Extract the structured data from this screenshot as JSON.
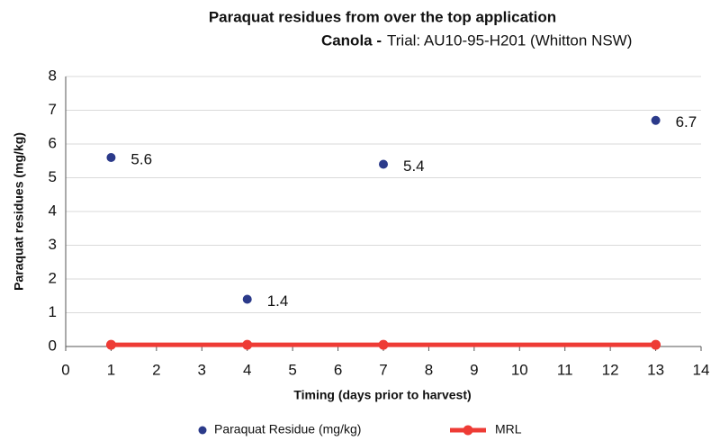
{
  "chart_data": {
    "type": "scatter",
    "title": "Paraquat residues from over the top application",
    "subtitle_bold": "Canola -",
    "subtitle": "Trial: AU10-95-H201 (Whitton NSW)",
    "xlabel": "Timing (days prior to harvest)",
    "ylabel": "Paraquat residues (mg/kg)",
    "x": [
      1,
      4,
      7,
      13
    ],
    "series": [
      {
        "name": "Paraquat Residue (mg/kg)",
        "type": "scatter",
        "color": "#2b3a8a",
        "values": [
          5.6,
          1.4,
          5.4,
          6.7
        ]
      },
      {
        "name": "MRL",
        "type": "line",
        "color": "#ee3b35",
        "values": [
          0.05,
          0.05,
          0.05,
          0.05
        ]
      }
    ],
    "xlim": [
      0,
      14
    ],
    "xticks": [
      0,
      1,
      2,
      3,
      4,
      5,
      6,
      7,
      8,
      9,
      10,
      11,
      12,
      13,
      14
    ],
    "ylim": [
      0,
      8
    ],
    "yticks": [
      0,
      1,
      2,
      3,
      4,
      5,
      6,
      7,
      8
    ],
    "grid": true,
    "legend": "bottom"
  }
}
